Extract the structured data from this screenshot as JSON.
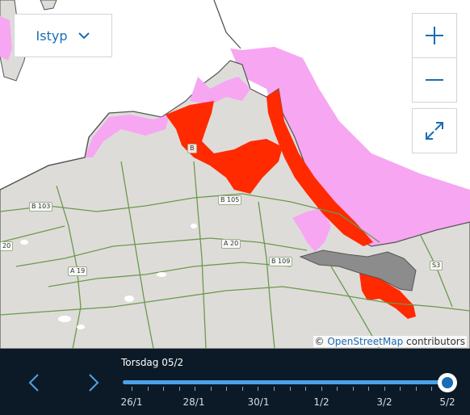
{
  "map": {
    "road_labels": [
      "B 103",
      "B 105",
      "A 20",
      "B 109",
      "A 19",
      "S3",
      "B",
      "20"
    ],
    "colors": {
      "land": "#dedcd9",
      "water": "#ffffff",
      "severe_ice": "#ff2a00",
      "light_ice": "#f7a6f2",
      "shore_grey": "#8c8c8c",
      "road": "#6a9a4e",
      "border": "#555555"
    }
  },
  "ice_type_dropdown": {
    "label": "Istyp",
    "icon": "chevron-down-icon"
  },
  "zoom_controls": {
    "zoom_in_icon": "plus-icon",
    "zoom_out_icon": "minus-icon",
    "fullscreen_icon": "expand-icon"
  },
  "attribution": {
    "symbol": "©",
    "link": "OpenStreetMap",
    "suffix": "contributors"
  },
  "timeline": {
    "selected_date": "Torsdag 05/2",
    "tick_labels": [
      "26/1",
      "28/1",
      "30/1",
      "1/2",
      "3/2",
      "5/2"
    ],
    "selected_fraction": 1.0,
    "prev_icon": "chevron-left-icon",
    "next_icon": "chevron-right-icon"
  }
}
